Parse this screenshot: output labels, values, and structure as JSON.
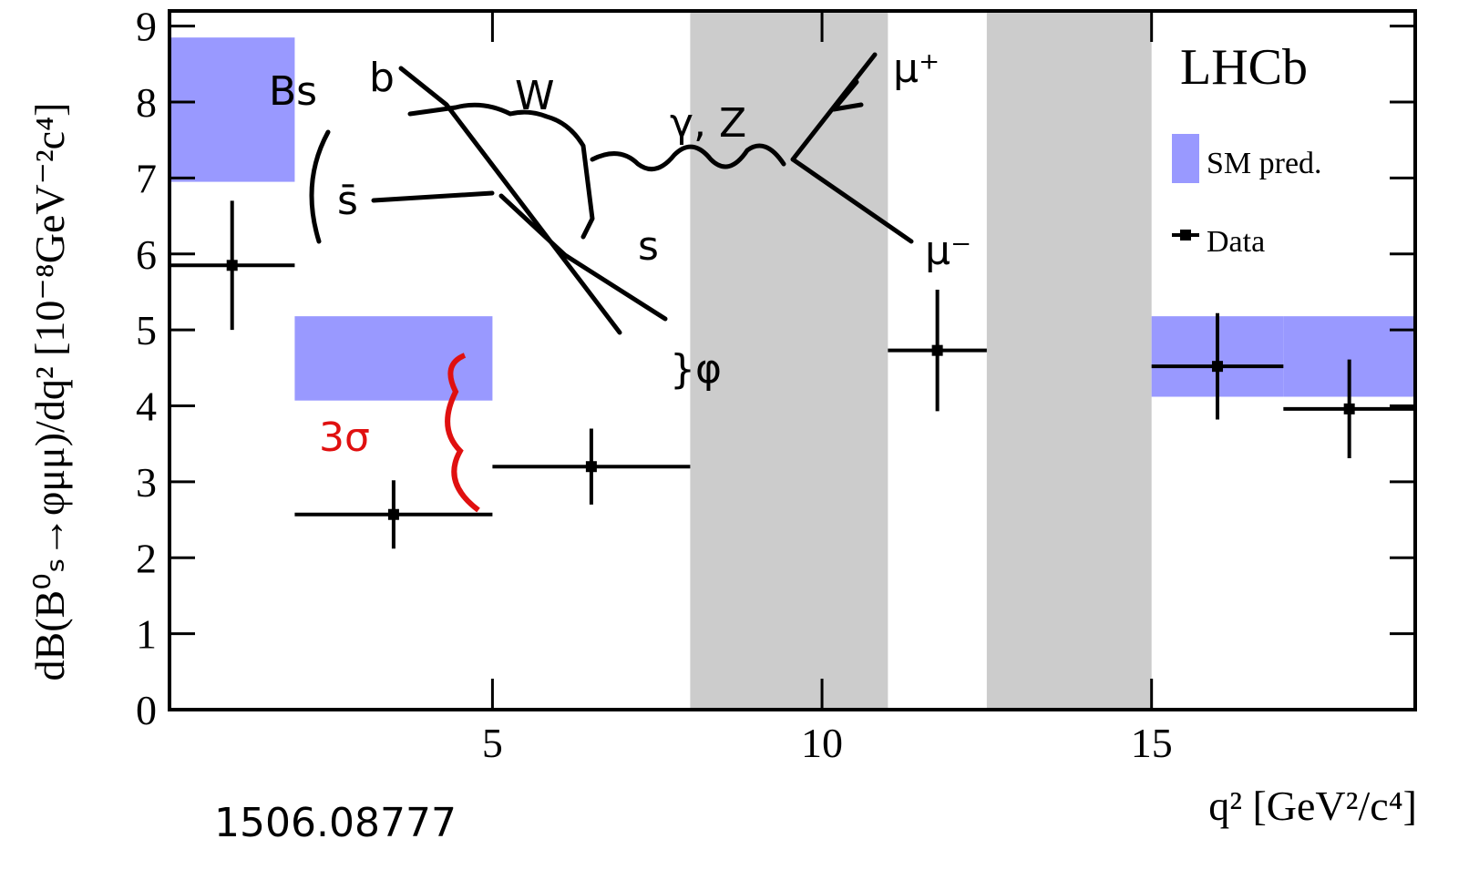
{
  "chart_data": {
    "type": "errorbar",
    "title": "LHCb",
    "x_label": "q² [GeV²/c⁴]",
    "y_label": "dB(B⁰ₛ→φμμ)/dq² [10⁻⁸GeV⁻²c⁴]",
    "xlim": [
      0.1,
      19
    ],
    "xticks": [
      5,
      10,
      15
    ],
    "ylim": [
      0,
      9.2
    ],
    "yticks": [
      0,
      1,
      2,
      3,
      4,
      5,
      6,
      7,
      8,
      9
    ],
    "shaded_regions": [
      [
        8,
        11
      ],
      [
        12.5,
        15
      ]
    ],
    "shaded_color": "#cccccc",
    "legend": "upper right",
    "series": [
      {
        "name": "Data",
        "color": "#000000",
        "x": [
          1.05,
          3.5,
          6.5,
          11.75,
          16,
          18
        ],
        "values": [
          5.85,
          2.57,
          3.2,
          4.73,
          4.52,
          3.96
        ],
        "errors": [
          0.85,
          0.45,
          0.5,
          0.8,
          0.7,
          0.65
        ],
        "x_ranges": [
          [
            0.1,
            2
          ],
          [
            2,
            5
          ],
          [
            5,
            8
          ],
          [
            11,
            12.5
          ],
          [
            15,
            17
          ],
          [
            17,
            19
          ]
        ]
      },
      {
        "name": "SM pred.",
        "color": "#9999ff",
        "x_ranges": [
          [
            0.1,
            2
          ],
          [
            2,
            5
          ],
          [
            15,
            17
          ],
          [
            17,
            19
          ]
        ],
        "y_ranges": [
          [
            6.95,
            8.85
          ],
          [
            4.07,
            5.18
          ],
          [
            4.12,
            5.18
          ],
          [
            4.12,
            5.18
          ]
        ]
      }
    ]
  },
  "annotations": {
    "arxiv": "1506.08777",
    "sigma": "3σ",
    "bs": "Bs",
    "b": "b",
    "sbar": "s̄",
    "w": "W",
    "gz": "γ, Z",
    "mup": "μ⁺",
    "mum": "μ⁻",
    "s": "s",
    "phi": "}φ"
  }
}
